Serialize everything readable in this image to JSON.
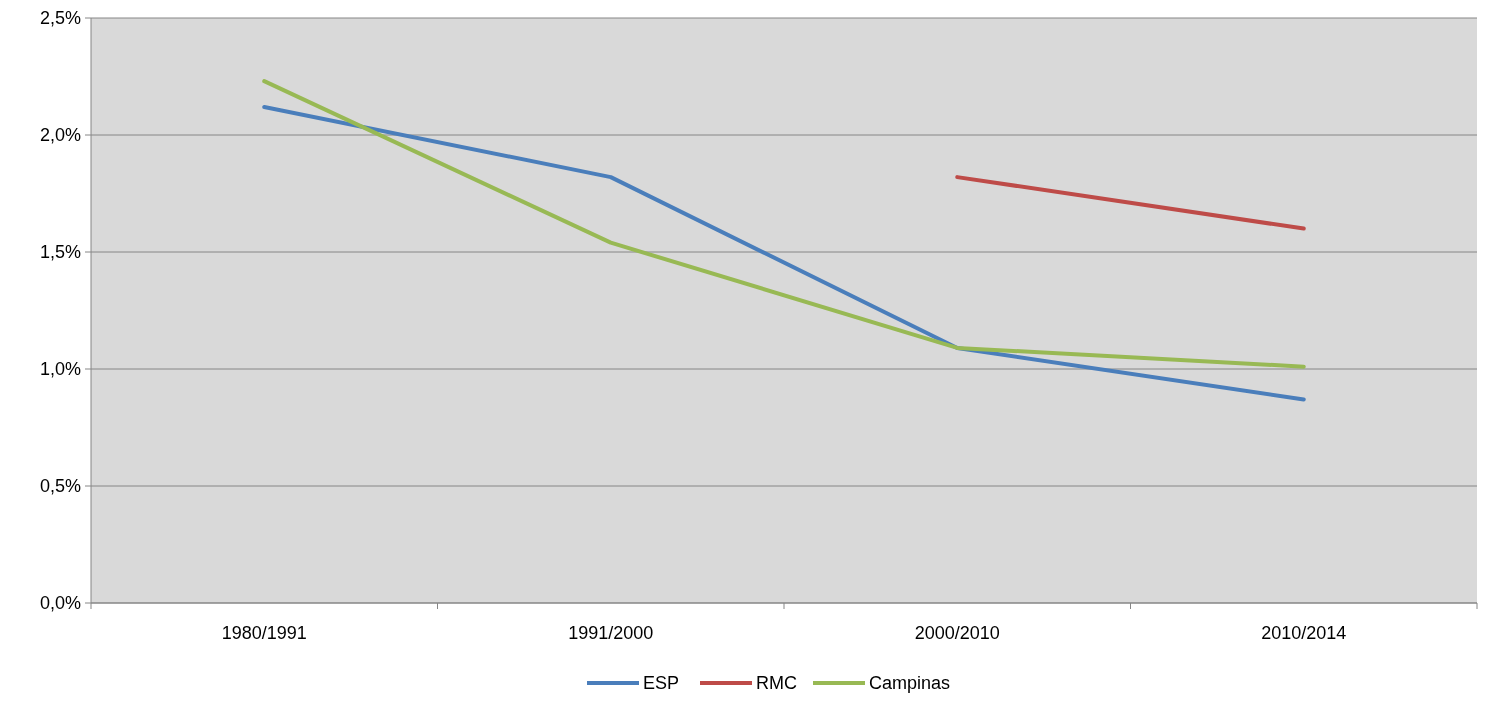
{
  "chart_data": {
    "type": "line",
    "categories": [
      "1980/1991",
      "1991/2000",
      "2000/2010",
      "2010/2014"
    ],
    "series": [
      {
        "name": "ESP",
        "color": "#4a7ebb",
        "values": [
          2.12,
          1.82,
          1.09,
          0.87
        ]
      },
      {
        "name": "RMC",
        "color": "#be4b48",
        "values": [
          null,
          null,
          1.82,
          1.6
        ]
      },
      {
        "name": "Campinas",
        "color": "#98b954",
        "values": [
          2.23,
          1.54,
          1.09,
          1.01
        ]
      }
    ],
    "ylim": [
      0,
      2.5
    ],
    "yticks": [
      {
        "value": 0,
        "label": "0,0%"
      },
      {
        "value": 0.5,
        "label": "0,5%"
      },
      {
        "value": 1,
        "label": "1,0%"
      },
      {
        "value": 1.5,
        "label": "1,5%"
      },
      {
        "value": 2,
        "label": "2,0%"
      },
      {
        "value": 2.5,
        "label": "2,5%"
      }
    ],
    "grid": "y",
    "legend": "bottom",
    "marker": "none",
    "line_style": "solid"
  }
}
